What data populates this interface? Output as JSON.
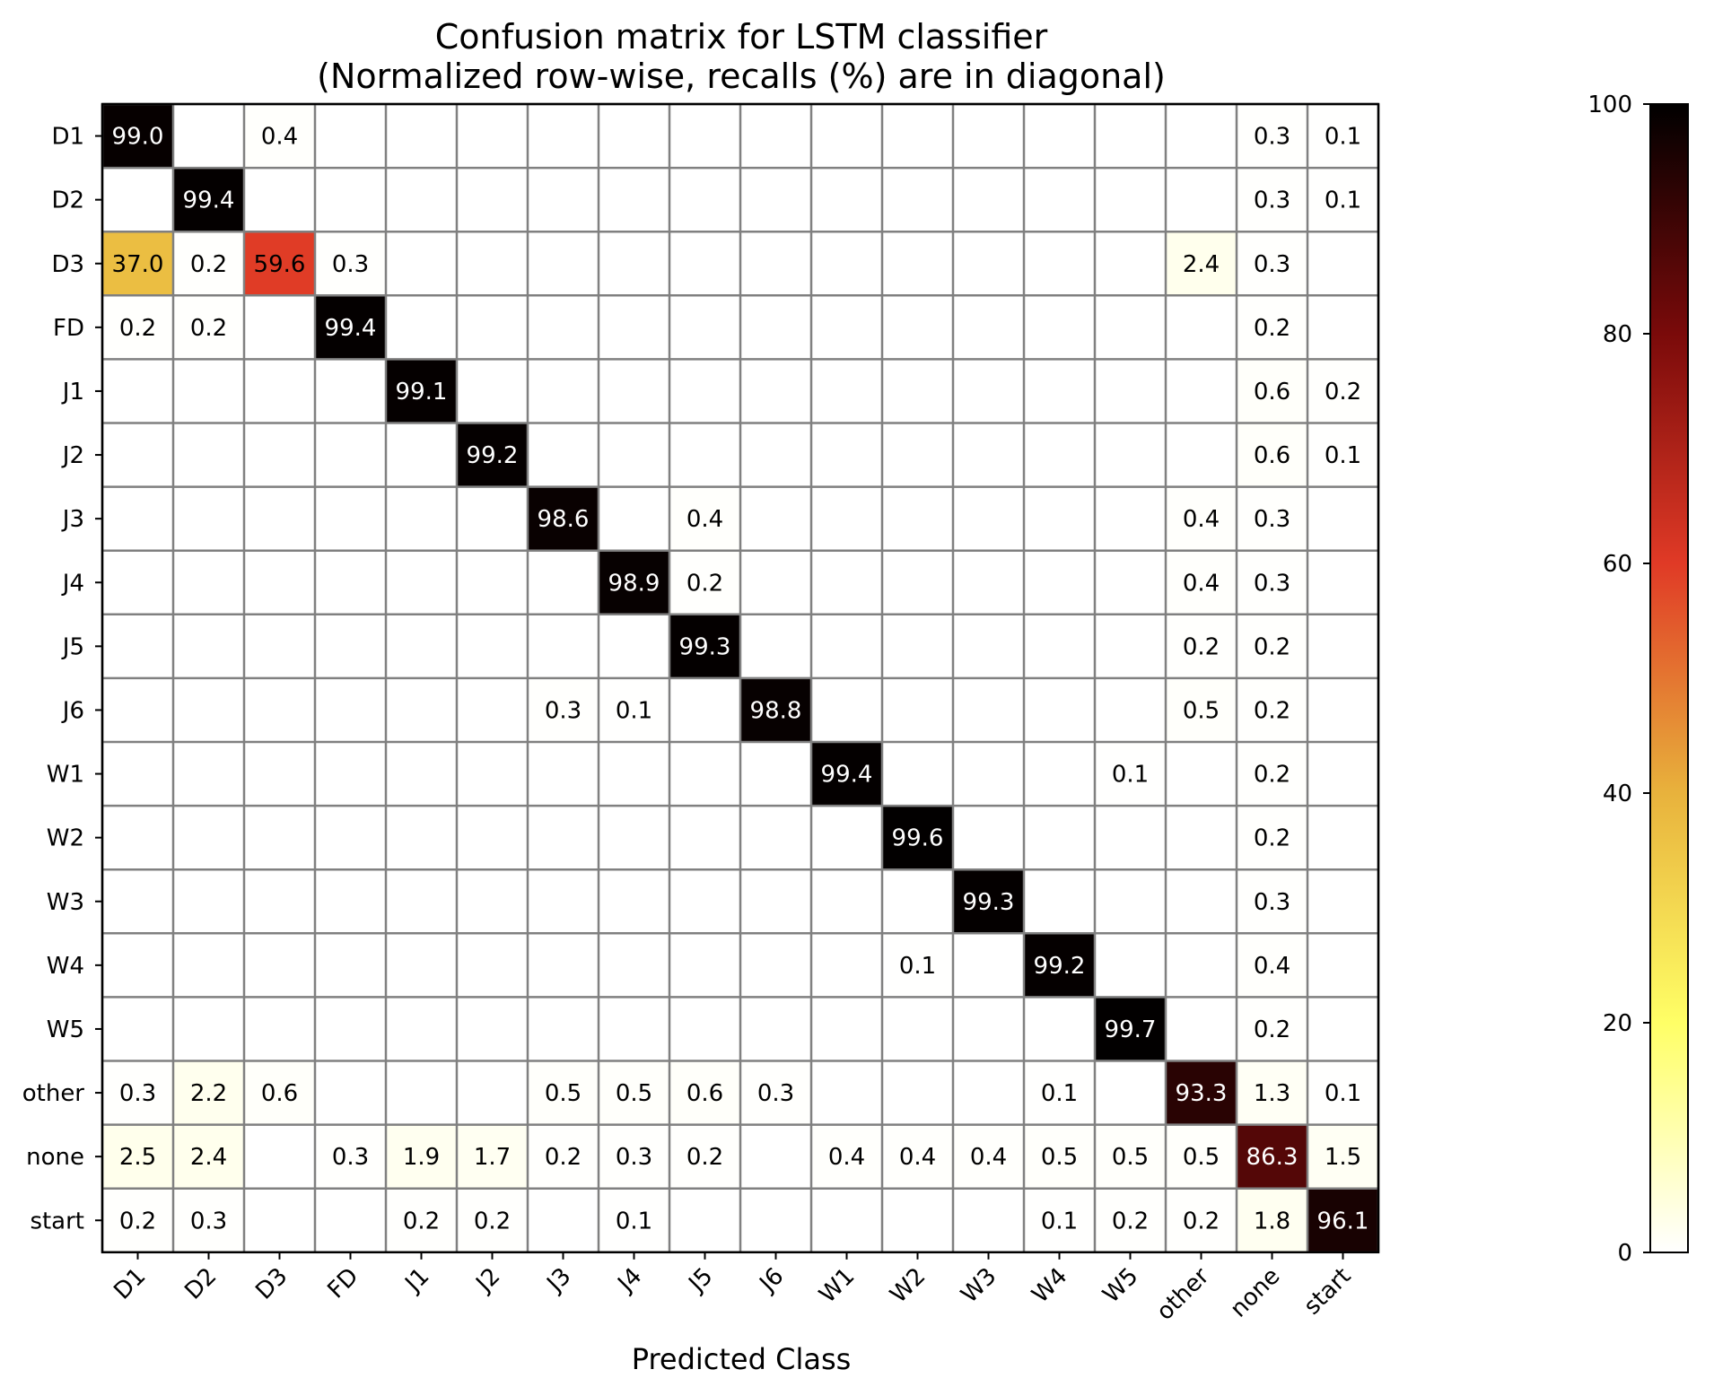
{
  "chart_data": {
    "type": "heatmap",
    "title_lines": [
      "Confusion matrix for LSTM classifier",
      "(Normalized row-wise, recalls (%) are in diagonal)"
    ],
    "xlabel": "Predicted Class",
    "ylabel": "",
    "row_labels": [
      "D1",
      "D2",
      "D3",
      "FD",
      "J1",
      "J2",
      "J3",
      "J4",
      "J5",
      "J6",
      "W1",
      "W2",
      "W3",
      "W4",
      "W5",
      "other",
      "none",
      "start"
    ],
    "col_labels": [
      "D1",
      "D2",
      "D3",
      "FD",
      "J1",
      "J2",
      "J3",
      "J4",
      "J5",
      "J6",
      "W1",
      "W2",
      "W3",
      "W4",
      "W5",
      "other",
      "none",
      "start"
    ],
    "values": [
      [
        99.0,
        null,
        0.4,
        null,
        null,
        null,
        null,
        null,
        null,
        null,
        null,
        null,
        null,
        null,
        null,
        null,
        0.3,
        0.1
      ],
      [
        null,
        99.4,
        null,
        null,
        null,
        null,
        null,
        null,
        null,
        null,
        null,
        null,
        null,
        null,
        null,
        null,
        0.3,
        0.1
      ],
      [
        37.0,
        0.2,
        59.6,
        0.3,
        null,
        null,
        null,
        null,
        null,
        null,
        null,
        null,
        null,
        null,
        null,
        2.4,
        0.3,
        null
      ],
      [
        0.2,
        0.2,
        null,
        99.4,
        null,
        null,
        null,
        null,
        null,
        null,
        null,
        null,
        null,
        null,
        null,
        null,
        0.2,
        null
      ],
      [
        null,
        null,
        null,
        null,
        99.1,
        null,
        null,
        null,
        null,
        null,
        null,
        null,
        null,
        null,
        null,
        null,
        0.6,
        0.2
      ],
      [
        null,
        null,
        null,
        null,
        null,
        99.2,
        null,
        null,
        null,
        null,
        null,
        null,
        null,
        null,
        null,
        null,
        0.6,
        0.1
      ],
      [
        null,
        null,
        null,
        null,
        null,
        null,
        98.6,
        null,
        0.4,
        null,
        null,
        null,
        null,
        null,
        null,
        0.4,
        0.3,
        null
      ],
      [
        null,
        null,
        null,
        null,
        null,
        null,
        null,
        98.9,
        0.2,
        null,
        null,
        null,
        null,
        null,
        null,
        0.4,
        0.3,
        null
      ],
      [
        null,
        null,
        null,
        null,
        null,
        null,
        null,
        null,
        99.3,
        null,
        null,
        null,
        null,
        null,
        null,
        0.2,
        0.2,
        null
      ],
      [
        null,
        null,
        null,
        null,
        null,
        null,
        0.3,
        0.1,
        null,
        98.8,
        null,
        null,
        null,
        null,
        null,
        0.5,
        0.2,
        null
      ],
      [
        null,
        null,
        null,
        null,
        null,
        null,
        null,
        null,
        null,
        null,
        99.4,
        null,
        null,
        null,
        0.1,
        null,
        0.2,
        null
      ],
      [
        null,
        null,
        null,
        null,
        null,
        null,
        null,
        null,
        null,
        null,
        null,
        99.6,
        null,
        null,
        null,
        null,
        0.2,
        null
      ],
      [
        null,
        null,
        null,
        null,
        null,
        null,
        null,
        null,
        null,
        null,
        null,
        null,
        99.3,
        null,
        null,
        null,
        0.3,
        null
      ],
      [
        null,
        null,
        null,
        null,
        null,
        null,
        null,
        null,
        null,
        null,
        null,
        0.1,
        null,
        99.2,
        null,
        null,
        0.4,
        null
      ],
      [
        null,
        null,
        null,
        null,
        null,
        null,
        null,
        null,
        null,
        null,
        null,
        null,
        null,
        null,
        99.7,
        null,
        0.2,
        null
      ],
      [
        0.3,
        2.2,
        0.6,
        null,
        null,
        null,
        0.5,
        0.5,
        0.6,
        0.3,
        null,
        null,
        null,
        0.1,
        null,
        93.3,
        1.3,
        0.1
      ],
      [
        2.5,
        2.4,
        null,
        0.3,
        1.9,
        1.7,
        0.2,
        0.3,
        0.2,
        null,
        0.4,
        0.4,
        0.4,
        0.5,
        0.5,
        0.5,
        86.3,
        1.5
      ],
      [
        0.2,
        0.3,
        null,
        null,
        0.2,
        0.2,
        null,
        0.1,
        null,
        null,
        null,
        null,
        null,
        0.1,
        0.2,
        0.2,
        1.8,
        96.1
      ]
    ],
    "value_range": [
      0,
      100
    ],
    "colorbar": {
      "ticks": [
        0,
        20,
        40,
        60,
        80,
        100
      ],
      "colormap": "afmhot_r",
      "colors": [
        "#ffffff",
        "#ffff66",
        "#e8b23c",
        "#e03a26",
        "#7a0a0a",
        "#000000"
      ]
    },
    "grid": true,
    "grid_color": "#808080"
  }
}
